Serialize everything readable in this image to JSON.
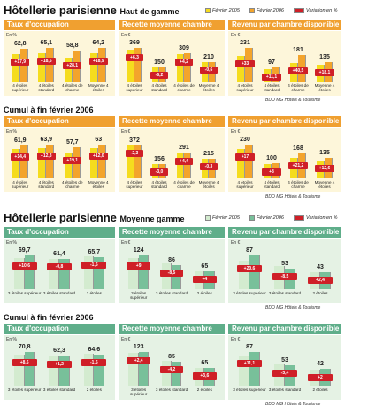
{
  "sections": [
    {
      "title": "Hôtellerie parisienne",
      "subtitle": "Haut de gamme",
      "legend": [
        {
          "name": "Février 2005",
          "color": "#f5dc1e"
        },
        {
          "name": "Février 2006",
          "color": "#f3a42c"
        },
        {
          "name": "Variation en %",
          "color": "#cf1f27"
        }
      ],
      "rows": [
        {
          "source": "BDO MG Hôtels & Tourisme",
          "charts": [
            {
              "type": "bar",
              "title": "Taux d'occupation",
              "unit": "En %",
              "categories": [
                "4 étoiles supérieur",
                "4 étoiles standard",
                "4 étoiles de charme",
                "Moyenne 4 étoiles"
              ],
              "series": [
                {
                  "values": [
                    53.3,
                    54.9,
                    45.9,
                    54.0
                  ]
                },
                {
                  "values": [
                    62.8,
                    65.1,
                    58.8,
                    64.2
                  ],
                  "value_labels": [
                    "62,8",
                    "65,1",
                    "58,8",
                    "64,2"
                  ]
                }
              ],
              "variation": {
                "values": [
                  17.9,
                  18.5,
                  28.1,
                  18.9
                ],
                "value_labels": [
                  "+17,9",
                  "+18,5",
                  "+28,1",
                  "+18,9"
                ]
              }
            },
            {
              "type": "bar",
              "title": "Recette moyenne chambre",
              "unit": "En €",
              "categories": [
                "4 étoiles supérieur",
                "4 étoiles standard",
                "4 étoiles de charme",
                "Moyenne 4 étoiles"
              ],
              "series": [
                {
                  "values": [
                    347,
                    160,
                    297,
                    211
                  ]
                },
                {
                  "values": [
                    369,
                    150,
                    309,
                    210
                  ]
                }
              ],
              "variation": {
                "values": [
                  6.3,
                  -6.2,
                  4.2,
                  -0.6
                ],
                "value_labels": [
                  "+6,3",
                  "-6,2",
                  "+4,2",
                  "-0,6"
                ]
              }
            },
            {
              "type": "bar",
              "title": "Revenu par chambre disponible",
              "unit": "En €",
              "categories": [
                "4 étoiles supérieur",
                "4 étoiles standard",
                "4 étoiles de charme",
                "Moyenne 4 étoiles"
              ],
              "series": [
                {
                  "values": [
                    174,
                    87,
                    129,
                    114
                  ]
                },
                {
                  "values": [
                    231,
                    97,
                    181,
                    135
                  ]
                }
              ],
              "variation": {
                "values": [
                  33,
                  11.1,
                  40.5,
                  18.1
                ],
                "value_labels": [
                  "+33",
                  "+11,1",
                  "+40,5",
                  "+18,1"
                ]
              }
            }
          ]
        },
        {
          "title": "Cumul à fin février 2006",
          "source": "BDO MG Hôtels & Tourisme",
          "charts": [
            {
              "type": "bar",
              "title": "Taux d'occupation",
              "unit": "En %",
              "categories": [
                "4 étoiles supérieur",
                "4 étoiles standard",
                "4 étoiles de charme",
                "Moyenne 4 étoiles"
              ],
              "series": [
                {
                  "values": [
                    54.1,
                    56.9,
                    48.4,
                    56.3
                  ]
                },
                {
                  "values": [
                    61.9,
                    63.9,
                    57.7,
                    63
                  ],
                  "value_labels": [
                    "61,9",
                    "63,9",
                    "57,7",
                    "63"
                  ]
                }
              ],
              "variation": {
                "values": [
                  14.4,
                  12.3,
                  19.1,
                  12.0
                ],
                "value_labels": [
                  "+14,4",
                  "+12,3",
                  "+19,1",
                  "+12,0"
                ]
              }
            },
            {
              "type": "bar",
              "title": "Recette moyenne chambre",
              "unit": "En €",
              "categories": [
                "4 étoiles supérieur",
                "4 étoiles standard",
                "4 étoiles de charme",
                "Moyenne 4 étoiles"
              ],
              "series": [
                {
                  "values": [
                    381,
                    161,
                    279,
                    216
                  ]
                },
                {
                  "values": [
                    372,
                    156,
                    291,
                    215
                  ]
                }
              ],
              "variation": {
                "values": [
                  -2.3,
                  -3.0,
                  4.4,
                  -0.3
                ],
                "value_labels": [
                  "-2,3",
                  "-3,0",
                  "+4,4",
                  "-0,3"
                ]
              }
            },
            {
              "type": "bar",
              "title": "Revenu par chambre disponible",
              "unit": "En €",
              "categories": [
                "4 étoiles supérieur",
                "4 étoiles standard",
                "4 étoiles de charme",
                "Moyenne 4 étoiles"
              ],
              "series": [
                {
                  "values": [
                    197,
                    93,
                    139,
                    120
                  ]
                },
                {
                  "values": [
                    230,
                    100,
                    168,
                    135
                  ]
                }
              ],
              "variation": {
                "values": [
                  17,
                  8,
                  21.2,
                  12.6
                ],
                "value_labels": [
                  "+17",
                  "+8",
                  "+21,2",
                  "+12,6"
                ]
              }
            }
          ]
        }
      ]
    },
    {
      "title": "Hôtellerie parisienne",
      "subtitle": "Moyenne gamme",
      "legend": [
        {
          "name": "Février 2005",
          "color": "#d3ebcf"
        },
        {
          "name": "Février 2006",
          "color": "#78c09a"
        },
        {
          "name": "Variation en %",
          "color": "#cf1f27"
        }
      ],
      "rows": [
        {
          "source": "BDO MG Hôtels & Tourisme",
          "charts": [
            {
              "type": "bar",
              "title": "Taux d'occupation",
              "unit": "En %",
              "categories": [
                "3 étoiles supérieur",
                "3 étoiles standard",
                "2 étoiles"
              ],
              "series": [
                {
                  "values": [
                    63.0,
                    61.9,
                    66.8
                  ]
                },
                {
                  "values": [
                    69.7,
                    61.4,
                    65.7
                  ],
                  "value_labels": [
                    "69,7",
                    "61,4",
                    "65,7"
                  ]
                }
              ],
              "variation": {
                "values": [
                  10.6,
                  -0.8,
                  -1.6
                ],
                "value_labels": [
                  "+10,6",
                  "-0,8",
                  "-1,6"
                ]
              }
            },
            {
              "type": "bar",
              "title": "Recette moyenne chambre",
              "unit": "En €",
              "categories": [
                "3 étoiles supérieur",
                "3 étoiles standard",
                "2 étoiles"
              ],
              "series": [
                {
                  "values": [
                    114,
                    94,
                    63
                  ]
                },
                {
                  "values": [
                    124,
                    86,
                    65
                  ]
                }
              ],
              "variation": {
                "values": [
                  9,
                  -8.5,
                  4
                ],
                "value_labels": [
                  "+9",
                  "-8,5",
                  "+4"
                ]
              }
            },
            {
              "type": "bar",
              "title": "Revenu par chambre disponible",
              "unit": "En €",
              "categories": [
                "3 étoiles supérieur",
                "3 étoiles standard",
                "2 étoiles"
              ],
              "series": [
                {
                  "values": [
                    72,
                    58,
                    42
                  ]
                },
                {
                  "values": [
                    87,
                    53,
                    43
                  ]
                }
              ],
              "variation": {
                "values": [
                  20.6,
                  -8.5,
                  2.4
                ],
                "value_labels": [
                  "+20,6",
                  "-8,5",
                  "+2,4"
                ]
              }
            }
          ]
        },
        {
          "title": "Cumul à fin février 2006",
          "source": "BDO MG Hôtels & Tourisme",
          "charts": [
            {
              "type": "bar",
              "title": "Taux d'occupation",
              "unit": "En %",
              "categories": [
                "3 étoiles supérieur",
                "3 étoiles standard",
                "2 étoiles"
              ],
              "series": [
                {
                  "values": [
                    65.2,
                    61.6,
                    65.6
                  ]
                },
                {
                  "values": [
                    70.8,
                    62.3,
                    64.6
                  ],
                  "value_labels": [
                    "70,8",
                    "62,3",
                    "64,6"
                  ]
                }
              ],
              "variation": {
                "values": [
                  8.6,
                  1.2,
                  -1.6
                ],
                "value_labels": [
                  "+8,6",
                  "+1,2",
                  "-1,6"
                ]
              }
            },
            {
              "type": "bar",
              "title": "Recette moyenne chambre",
              "unit": "En €",
              "categories": [
                "3 étoiles supérieur",
                "3 étoiles standard",
                "2 étoiles"
              ],
              "series": [
                {
                  "values": [
                    120,
                    89,
                    63
                  ]
                },
                {
                  "values": [
                    123,
                    85,
                    65
                  ]
                }
              ],
              "variation": {
                "values": [
                  2.4,
                  -4.2,
                  3.6
                ],
                "value_labels": [
                  "+2,4",
                  "-4,2",
                  "+3,6"
                ]
              }
            },
            {
              "type": "bar",
              "title": "Revenu par chambre disponible",
              "unit": "En €",
              "categories": [
                "3 étoiles supérieur",
                "3 étoiles standard",
                "2 étoiles"
              ],
              "series": [
                {
                  "values": [
                    78,
                    55,
                    41
                  ]
                },
                {
                  "values": [
                    87,
                    53,
                    42
                  ]
                }
              ],
              "variation": {
                "values": [
                  11.1,
                  -3.4,
                  2
                ],
                "value_labels": [
                  "+11,1",
                  "-3,4",
                  "+2"
                ]
              }
            }
          ]
        }
      ]
    }
  ]
}
